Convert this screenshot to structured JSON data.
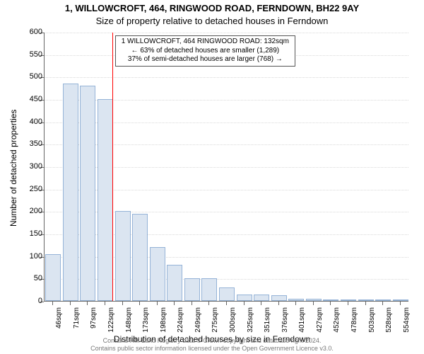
{
  "title_line1": "1, WILLOWCROFT, 464, RINGWOOD ROAD, FERNDOWN, BH22 9AY",
  "title_line2": "Size of property relative to detached houses in Ferndown",
  "y_axis_label": "Number of detached properties",
  "x_axis_label": "Distribution of detached houses by size in Ferndown",
  "footer_line1": "Contains HM Land Registry data © Crown copyright and database right 2024.",
  "footer_line2": "Contains public sector information licensed under the Open Government Licence v3.0.",
  "chart": {
    "type": "histogram",
    "ylim": [
      0,
      600
    ],
    "yticks": [
      0,
      50,
      100,
      150,
      200,
      250,
      300,
      350,
      400,
      450,
      500,
      550,
      600
    ],
    "grid_color": "#d9d9d9",
    "axis_color": "#666666",
    "background_color": "#ffffff",
    "bar_fill": "#dbe5f1",
    "bar_border": "#95b3d7",
    "reference_line_color": "#ff0000",
    "reference_value": 132,
    "xtick_labels": [
      "46sqm",
      "71sqm",
      "97sqm",
      "122sqm",
      "148sqm",
      "173sqm",
      "198sqm",
      "224sqm",
      "249sqm",
      "275sqm",
      "300sqm",
      "325sqm",
      "351sqm",
      "376sqm",
      "401sqm",
      "427sqm",
      "452sqm",
      "478sqm",
      "503sqm",
      "528sqm",
      "554sqm"
    ],
    "values": [
      105,
      485,
      480,
      450,
      200,
      195,
      120,
      80,
      50,
      50,
      30,
      15,
      15,
      12,
      5,
      4,
      2,
      2,
      1,
      1,
      1
    ],
    "tick_font_size": 11,
    "label_font_size": 12,
    "title_font_size": 13
  },
  "annotation": {
    "line1": "1 WILLOWCROFT, 464 RINGWOOD ROAD: 132sqm",
    "line2": "← 63% of detached houses are smaller (1,289)",
    "line3": "37% of semi-detached houses are larger (768) →",
    "background_color": "#ffffff",
    "font_size": 10
  }
}
